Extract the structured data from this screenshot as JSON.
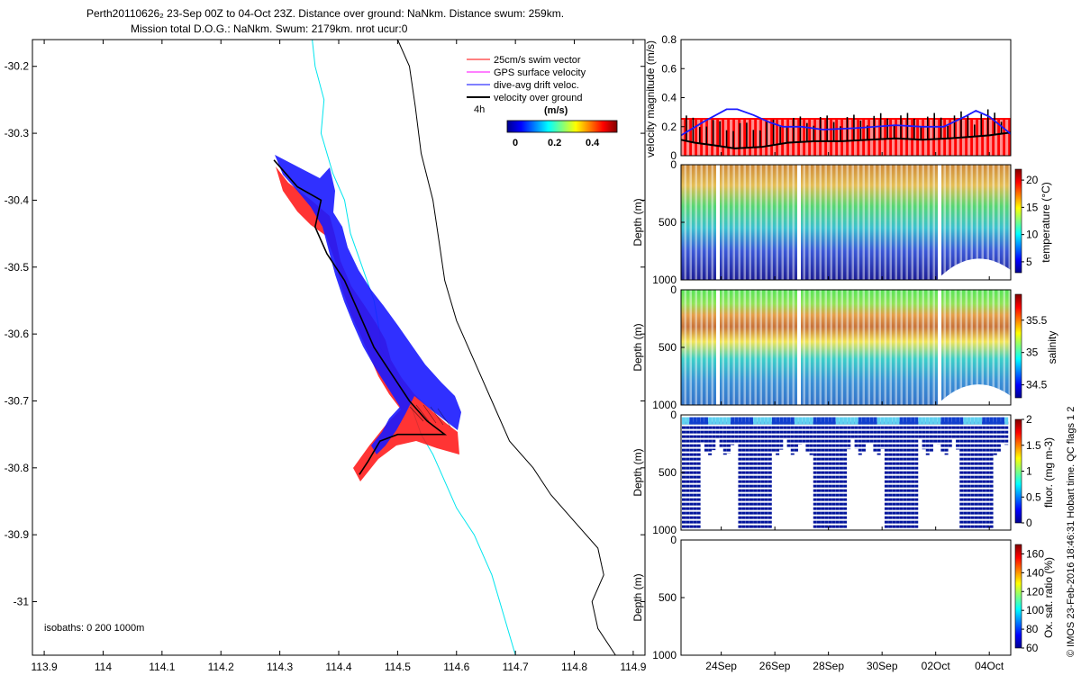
{
  "header": {
    "line1": "Perth20110626₂ 23-Sep 00Z to 04-Oct 23Z. Distance over ground: NaNkm. Distance swum: 259km.",
    "line2": "Mission total D.O.G.: NaNkm. Swum: 2179km. nrot ucur:0"
  },
  "side_note": "© IMOS 23-Feb-2016 18:46:31 Hobart time. QC flags 1  2",
  "colors": {
    "swim": "#ff0000",
    "gps": "#ff00ff",
    "drift": "#0000ff",
    "ground": "#000000",
    "isobath200": "#00e5ee",
    "isobath1000": "#000000"
  },
  "chart_data": [
    {
      "type": "line",
      "name": "map",
      "xlabel": "",
      "ylabel": "",
      "xlim": [
        113.88,
        114.92
      ],
      "ylim": [
        -31.08,
        -30.16
      ],
      "xticks": [
        "113.9",
        "114",
        "114.1",
        "114.2",
        "114.3",
        "114.4",
        "114.5",
        "114.6",
        "114.7",
        "114.8",
        "114.9"
      ],
      "yticks": [
        "-30.2",
        "-30.3",
        "-30.4",
        "-30.5",
        "-30.6",
        "-30.7",
        "-30.8",
        "-30.9",
        "-31"
      ],
      "legend": {
        "items": [
          "25cm/s swim vector",
          "GPS surface velocity",
          "dive-avg drift veloc.",
          "velocity over ground"
        ],
        "scale_label": "4h",
        "colorbar_title": "(m/s)",
        "colorbar_ticks": [
          "0",
          "0.2",
          "0.4"
        ]
      },
      "isobath_label": "isobaths: 0   200  1000m",
      "isobath_200": [
        [
          114.355,
          -30.16
        ],
        [
          114.36,
          -30.2
        ],
        [
          114.375,
          -30.25
        ],
        [
          114.37,
          -30.3
        ],
        [
          114.39,
          -30.36
        ],
        [
          114.41,
          -30.4
        ],
        [
          114.42,
          -30.45
        ],
        [
          114.44,
          -30.5
        ],
        [
          114.46,
          -30.55
        ],
        [
          114.47,
          -30.6
        ],
        [
          114.47,
          -30.62
        ],
        [
          114.5,
          -30.66
        ],
        [
          114.52,
          -30.7
        ],
        [
          114.54,
          -30.75
        ],
        [
          114.56,
          -30.78
        ],
        [
          114.58,
          -30.82
        ],
        [
          114.6,
          -30.86
        ],
        [
          114.63,
          -30.9
        ],
        [
          114.66,
          -30.96
        ],
        [
          114.68,
          -31.02
        ],
        [
          114.7,
          -31.08
        ]
      ],
      "isobath_1000": [
        [
          114.5,
          -30.16
        ],
        [
          114.52,
          -30.2
        ],
        [
          114.53,
          -30.26
        ],
        [
          114.54,
          -30.33
        ],
        [
          114.56,
          -30.4
        ],
        [
          114.57,
          -30.46
        ],
        [
          114.58,
          -30.52
        ],
        [
          114.6,
          -30.58
        ],
        [
          114.63,
          -30.64
        ],
        [
          114.66,
          -30.7
        ],
        [
          114.69,
          -30.76
        ],
        [
          114.73,
          -30.8
        ],
        [
          114.76,
          -30.84
        ],
        [
          114.8,
          -30.88
        ],
        [
          114.84,
          -30.92
        ],
        [
          114.85,
          -30.96
        ],
        [
          114.83,
          -31.0
        ],
        [
          114.84,
          -31.04
        ],
        [
          114.87,
          -31.08
        ]
      ],
      "track": [
        [
          114.29,
          -30.34
        ],
        [
          114.33,
          -30.38
        ],
        [
          114.37,
          -30.4
        ],
        [
          114.36,
          -30.44
        ],
        [
          114.38,
          -30.48
        ],
        [
          114.41,
          -30.52
        ],
        [
          114.44,
          -30.58
        ],
        [
          114.46,
          -30.62
        ],
        [
          114.49,
          -30.66
        ],
        [
          114.52,
          -30.7
        ],
        [
          114.55,
          -30.73
        ],
        [
          114.58,
          -30.75
        ],
        [
          114.54,
          -30.75
        ],
        [
          114.5,
          -30.75
        ],
        [
          114.47,
          -30.76
        ],
        [
          114.45,
          -30.79
        ],
        [
          114.435,
          -30.81
        ]
      ]
    },
    {
      "type": "line",
      "name": "velocity",
      "ylabel": "velocity magnitude (m/s)",
      "ylim": [
        0,
        0.8
      ],
      "yticks": [
        "0",
        "0.2",
        "0.4",
        "0.6",
        "0.8"
      ],
      "x_days_range": [
        22.5,
        34.8
      ],
      "drift_speed": [
        [
          22.5,
          0.14
        ],
        [
          23.4,
          0.24
        ],
        [
          24.2,
          0.32
        ],
        [
          24.6,
          0.32
        ],
        [
          25.2,
          0.28
        ],
        [
          25.8,
          0.23
        ],
        [
          26.3,
          0.2
        ],
        [
          27,
          0.2
        ],
        [
          27.8,
          0.18
        ],
        [
          29,
          0.19
        ],
        [
          30.5,
          0.21
        ],
        [
          31.5,
          0.2
        ],
        [
          32.3,
          0.2
        ],
        [
          33.1,
          0.27
        ],
        [
          33.5,
          0.31
        ],
        [
          34,
          0.27
        ],
        [
          34.8,
          0.15
        ]
      ],
      "ground_speed": [
        [
          22.5,
          0.11
        ],
        [
          23,
          0.09
        ],
        [
          23.8,
          0.07
        ],
        [
          24.5,
          0.05
        ],
        [
          25.5,
          0.06
        ],
        [
          26.5,
          0.09
        ],
        [
          27.5,
          0.1
        ],
        [
          28.5,
          0.1
        ],
        [
          29.5,
          0.11
        ],
        [
          30.5,
          0.12
        ],
        [
          31.5,
          0.11
        ],
        [
          32.5,
          0.12
        ],
        [
          33.3,
          0.13
        ],
        [
          34,
          0.14
        ],
        [
          34.8,
          0.16
        ]
      ],
      "swim_speed": 0.25
    },
    {
      "type": "scatter",
      "name": "temperature",
      "ylabel": "Depth (m)",
      "yticks": [
        "0",
        "500",
        "1000"
      ],
      "ylim": [
        0,
        1000
      ],
      "colorbar_label": "temperature (°C)",
      "colorbar_ticks": [
        "5",
        "10",
        "15",
        "20"
      ],
      "clim": [
        3,
        22
      ]
    },
    {
      "type": "scatter",
      "name": "salinity",
      "ylabel": "Depth (m)",
      "yticks": [
        "0",
        "500",
        "1000"
      ],
      "ylim": [
        0,
        1000
      ],
      "colorbar_label": "salinity",
      "colorbar_ticks": [
        "34.5",
        "35",
        "35.5"
      ],
      "clim": [
        34.3,
        35.9
      ]
    },
    {
      "type": "scatter",
      "name": "fluorescence",
      "ylabel": "Depth (m)",
      "yticks": [
        "0",
        "500",
        "1000"
      ],
      "ylim": [
        0,
        1000
      ],
      "colorbar_label": "fluor. (mg m-3)",
      "colorbar_ticks": [
        "0",
        "0.5",
        "1",
        "1.5",
        "2"
      ],
      "clim": [
        0,
        2
      ]
    },
    {
      "type": "scatter",
      "name": "oxygen",
      "ylabel": "Depth (m)",
      "yticks": [
        "0",
        "500",
        "1000"
      ],
      "ylim": [
        0,
        1000
      ],
      "colorbar_label": "Ox. sat. ratio (%)",
      "colorbar_ticks": [
        "60",
        "80",
        "100",
        "120",
        "140",
        "160"
      ],
      "clim": [
        60,
        170
      ],
      "xticks": [
        "24Sep",
        "26Sep",
        "28Sep",
        "30Sep",
        "02Oct",
        "04Oct"
      ],
      "xtick_days": [
        24,
        26,
        28,
        30,
        32,
        34
      ]
    }
  ]
}
